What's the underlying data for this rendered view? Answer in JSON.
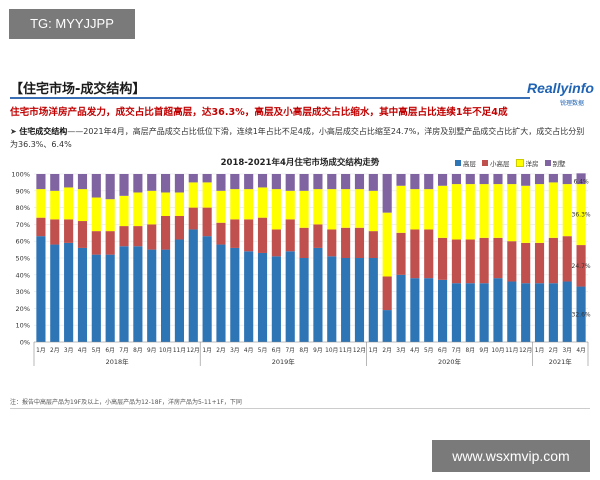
{
  "watermark_top": "TG: MYYJJPP",
  "watermark_bottom": "www.wsxmvip.com",
  "header_title": "【住宅市场-成交结构】",
  "logo": "Reallyinfo",
  "logo_sub": "锐理数据",
  "headline": "住宅市场洋房产品发力，成交占比首超高层，达36.3%，高层及小高层成交占比缩水，其中高层占比连续1年不足4成",
  "bullet_label": "住宅成交结构",
  "bullet_text": "——2021年4月，高层产品成交占比低位下滑，连续1年占比不足4成，小高层成交占比缩至24.7%，洋房及别墅产品成交占比扩大，成交占比分别为36.3%、6.4%",
  "note": "注：报告中高层产品为19F及以上，小高层产品为12-18F，洋房产品为5-11+1F，下同",
  "chart_data": {
    "type": "bar",
    "stacked": true,
    "title": "2018-2021年4月住宅市场成交结构走势",
    "ylim": [
      0,
      100
    ],
    "yticks": [
      "0%",
      "10%",
      "20%",
      "30%",
      "40%",
      "50%",
      "60%",
      "70%",
      "80%",
      "90%",
      "100%"
    ],
    "categories": [
      "1月",
      "2月",
      "3月",
      "4月",
      "5月",
      "6月",
      "7月",
      "8月",
      "9月",
      "10月",
      "11月",
      "12月",
      "1月",
      "2月",
      "3月",
      "4月",
      "5月",
      "6月",
      "7月",
      "8月",
      "9月",
      "10月",
      "11月",
      "12月",
      "1月",
      "2月",
      "3月",
      "4月",
      "5月",
      "6月",
      "7月",
      "8月",
      "9月",
      "10月",
      "11月",
      "12月",
      "1月",
      "2月",
      "3月",
      "4月"
    ],
    "year_groups": [
      {
        "label": "2018年",
        "start": 0,
        "end": 11
      },
      {
        "label": "2019年",
        "start": 12,
        "end": 23
      },
      {
        "label": "2020年",
        "start": 24,
        "end": 35
      },
      {
        "label": "2021年",
        "start": 36,
        "end": 39
      }
    ],
    "series": [
      {
        "name": "高层",
        "color": "#2e75b6",
        "values": [
          63,
          58,
          59,
          56,
          52,
          52,
          57,
          57,
          55,
          55,
          61,
          67,
          63,
          58,
          56,
          54,
          53,
          51,
          54,
          50,
          56,
          51,
          50,
          50,
          50,
          19,
          40,
          38,
          38,
          37,
          35,
          35,
          35,
          38,
          36,
          35,
          35,
          35,
          36,
          33
        ]
      },
      {
        "name": "小高层",
        "color": "#c0504d",
        "values": [
          11,
          15,
          14,
          16,
          14,
          14,
          12,
          12,
          15,
          20,
          14,
          13,
          17,
          13,
          17,
          19,
          21,
          16,
          19,
          18,
          14,
          16,
          18,
          18,
          16,
          20,
          25,
          29,
          29,
          25,
          26,
          26,
          27,
          24,
          24,
          24,
          24,
          27,
          27,
          24.7
        ]
      },
      {
        "name": "洋房",
        "color": "#ffff00",
        "values": [
          17,
          17,
          19,
          19,
          20,
          19,
          18,
          20,
          20,
          14,
          14,
          15,
          15,
          19,
          18,
          18,
          18,
          24,
          17,
          22,
          21,
          24,
          23,
          23,
          24,
          38,
          28,
          24,
          24,
          31,
          33,
          33,
          32,
          32,
          34,
          34,
          35,
          33,
          31,
          36.3
        ]
      },
      {
        "name": "别墅",
        "color": "#8064a2",
        "values": [
          9,
          10,
          8,
          9,
          14,
          15,
          13,
          11,
          10,
          11,
          11,
          5,
          5,
          10,
          9,
          9,
          8,
          9,
          10,
          10,
          9,
          9,
          9,
          9,
          10,
          23,
          7,
          9,
          9,
          7,
          6,
          6,
          6,
          6,
          6,
          7,
          6,
          5,
          6,
          6.4
        ]
      }
    ],
    "last_bar_labels": [
      "32.6%",
      "24.7%",
      "36.3%",
      "6.4%"
    ]
  }
}
